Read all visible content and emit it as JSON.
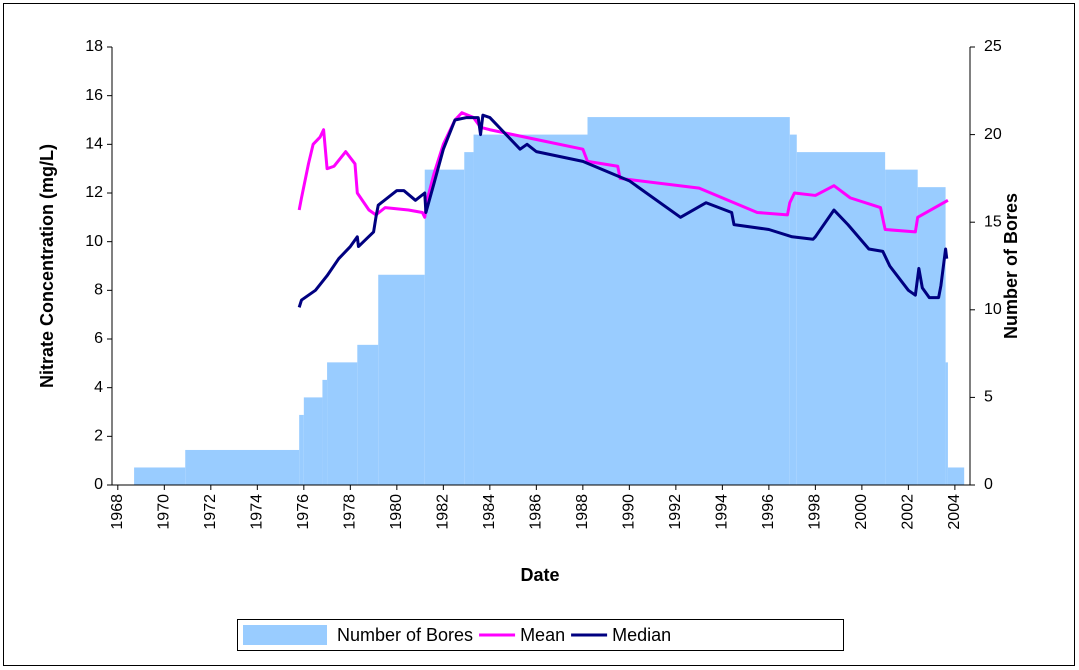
{
  "chart_data": {
    "type": "combo",
    "xlabel": "Date",
    "ylabel": "Nitrate Concentration (mg/L)",
    "y2label": "Number of Bores",
    "xlim": [
      1967.75,
      2004.65
    ],
    "xticks": [
      1968,
      1970,
      1972,
      1974,
      1976,
      1978,
      1980,
      1982,
      1984,
      1986,
      1988,
      1990,
      1992,
      1994,
      1996,
      1998,
      2000,
      2002,
      2004
    ],
    "ylim": [
      0,
      18
    ],
    "yticks": [
      0,
      2,
      4,
      6,
      8,
      10,
      12,
      14,
      16,
      18
    ],
    "y2lim": [
      0,
      25
    ],
    "y2ticks": [
      0,
      5,
      10,
      15,
      20,
      25
    ],
    "legend": "bottom",
    "series": [
      {
        "name": "Number of Bores",
        "type": "step-area",
        "axis": "y2",
        "color": "#99ccff",
        "bins": [
          1968.7,
          1970.9,
          1975.8,
          1976.0,
          1976.8,
          1977.0,
          1978.3,
          1979.2,
          1981.2,
          1982.9,
          1983.3,
          1988.2,
          1996.9,
          1997.2,
          2001.0,
          2002.4,
          2003.6,
          2003.7,
          2004.4
        ],
        "values": [
          1,
          2,
          4,
          5,
          6,
          7,
          8,
          12,
          18,
          19,
          20,
          21,
          20,
          19,
          18,
          17,
          7,
          1
        ]
      },
      {
        "name": "Mean",
        "type": "line",
        "color": "#ff00ff",
        "x": [
          1975.8,
          1975.9,
          1976.2,
          1976.4,
          1976.7,
          1976.85,
          1977.0,
          1977.3,
          1977.8,
          1978.2,
          1978.3,
          1978.8,
          1979.1,
          1979.5,
          1980.5,
          1981.1,
          1981.2,
          1981.3,
          1981.6,
          1982.0,
          1982.5,
          1982.8,
          1983.3,
          1983.6,
          1984.0,
          1986.0,
          1988.0,
          1988.2,
          1989.5,
          1989.6,
          1993.0,
          1995.5,
          1996.8,
          1996.9,
          1997.1,
          1998.0,
          1998.8,
          1999.5,
          2000.8,
          2001.0,
          2002.3,
          2002.4,
          2003.7
        ],
        "values": [
          11.3,
          11.8,
          13.2,
          14.0,
          14.3,
          14.6,
          13.0,
          13.1,
          13.7,
          13.2,
          12.0,
          11.3,
          11.1,
          11.4,
          11.3,
          11.2,
          11.0,
          11.7,
          12.8,
          14.0,
          15.0,
          15.3,
          15.1,
          14.7,
          14.6,
          14.2,
          13.8,
          13.3,
          13.1,
          12.6,
          12.2,
          11.2,
          11.1,
          11.6,
          12.0,
          11.9,
          12.3,
          11.8,
          11.4,
          10.5,
          10.4,
          11.0,
          11.7
        ]
      },
      {
        "name": "Median",
        "type": "line",
        "color": "#000080",
        "x": [
          1975.8,
          1975.9,
          1976.5,
          1977.0,
          1977.5,
          1978.0,
          1978.3,
          1978.35,
          1979.0,
          1979.1,
          1979.2,
          1980.0,
          1980.3,
          1980.8,
          1981.2,
          1981.25,
          1981.6,
          1982.0,
          1982.5,
          1983.0,
          1983.5,
          1983.6,
          1983.7,
          1984.0,
          1985.3,
          1985.6,
          1986.0,
          1988.0,
          1990.0,
          1992.2,
          1993.3,
          1994.4,
          1994.5,
          1996.0,
          1997.0,
          1997.9,
          1998.0,
          1998.8,
          1999.4,
          2000.3,
          2000.9,
          2001.2,
          2001.6,
          2002.0,
          2002.3,
          2002.45,
          2002.6,
          2002.9,
          2003.3,
          2003.4,
          2003.6,
          2003.65
        ],
        "values": [
          7.3,
          7.6,
          8.0,
          8.6,
          9.3,
          9.8,
          10.2,
          9.8,
          10.4,
          11.0,
          11.5,
          12.1,
          12.1,
          11.7,
          12.0,
          11.2,
          12.4,
          13.8,
          15.0,
          15.1,
          15.1,
          14.4,
          15.2,
          15.1,
          13.8,
          14.0,
          13.7,
          13.3,
          12.5,
          11.0,
          11.6,
          11.2,
          10.7,
          10.5,
          10.2,
          10.1,
          10.2,
          11.3,
          10.7,
          9.7,
          9.6,
          9.0,
          8.5,
          8.0,
          7.8,
          8.9,
          8.1,
          7.7,
          7.7,
          8.2,
          9.7,
          9.3
        ]
      }
    ]
  }
}
